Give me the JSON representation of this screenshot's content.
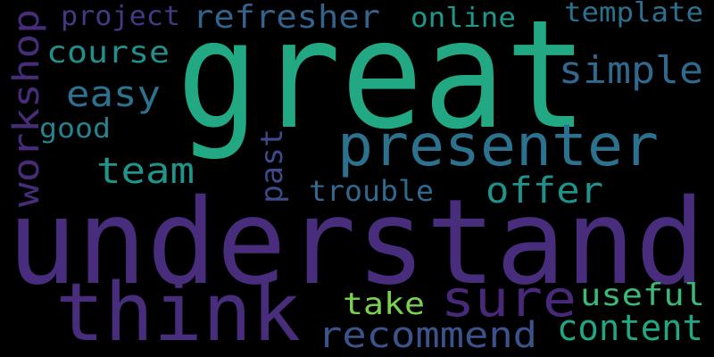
{
  "words": [
    {
      "id": "great",
      "text": "great",
      "color": "#23a884"
    },
    {
      "id": "understand",
      "text": "understand",
      "color": "#472d7b"
    },
    {
      "id": "think",
      "text": "think",
      "color": "#472d7b"
    },
    {
      "id": "presenter",
      "text": "presenter",
      "color": "#2c728e"
    },
    {
      "id": "sure",
      "text": "sure",
      "color": "#482878"
    },
    {
      "id": "refresher",
      "text": "refresher",
      "color": "#33638d"
    },
    {
      "id": "recommend",
      "text": "recommend",
      "color": "#3b528b"
    },
    {
      "id": "content",
      "text": "content",
      "color": "#22a785"
    },
    {
      "id": "simple",
      "text": "simple",
      "color": "#30688e"
    },
    {
      "id": "team",
      "text": "team",
      "color": "#1f958b"
    },
    {
      "id": "easy",
      "text": "easy",
      "color": "#2c728e"
    },
    {
      "id": "course",
      "text": "course",
      "color": "#21908d"
    },
    {
      "id": "offer",
      "text": "offer",
      "color": "#20928c"
    },
    {
      "id": "useful",
      "text": "useful",
      "color": "#3aba76"
    },
    {
      "id": "workshop",
      "text": "workshop",
      "color": "#472c7a"
    },
    {
      "id": "project",
      "text": "project",
      "color": "#443983"
    },
    {
      "id": "online",
      "text": "online",
      "color": "#1f988b"
    },
    {
      "id": "template",
      "text": "template",
      "color": "#2d708e"
    },
    {
      "id": "take",
      "text": "take",
      "color": "#7ad151"
    },
    {
      "id": "good",
      "text": "good",
      "color": "#26828e"
    },
    {
      "id": "past",
      "text": "past",
      "color": "#3e4989"
    },
    {
      "id": "trouble",
      "text": "trouble",
      "color": "#31688e"
    }
  ]
}
